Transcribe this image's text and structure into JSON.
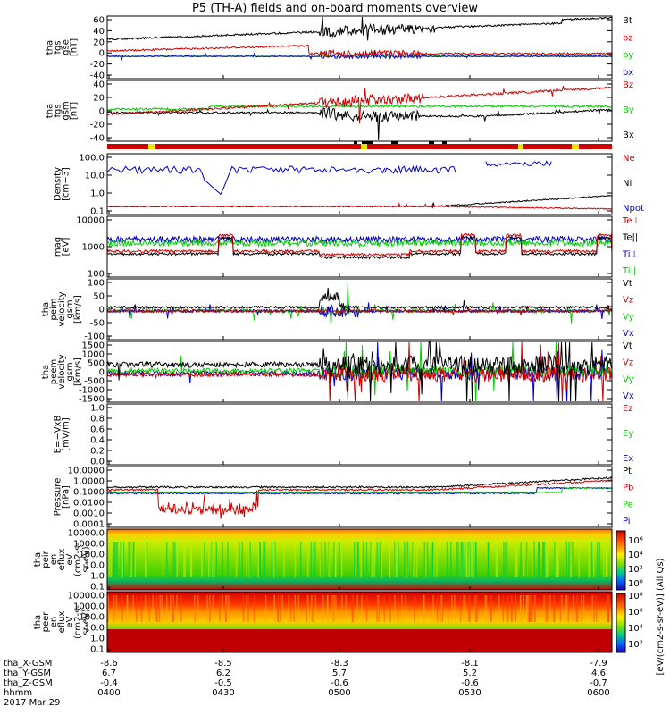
{
  "title": "P5 (TH-A) fields and on-board moments overview",
  "colors": {
    "black": "#000000",
    "red": "#d00000",
    "green": "#00cc00",
    "blue": "#0000d0",
    "yellow": "#e8e800"
  },
  "chart_data": [
    {
      "type": "line",
      "ylabel": [
        "tha",
        "fgs",
        "gse",
        "[nT]"
      ],
      "yticks": [
        "60",
        "40",
        "20",
        "0",
        "-20",
        "-40"
      ],
      "ylim": [
        -45,
        65
      ],
      "series": [
        {
          "name": "Bt",
          "color": "black"
        },
        {
          "name": "bz",
          "color": "red"
        },
        {
          "name": "by",
          "color": "green"
        },
        {
          "name": "bx",
          "color": "blue"
        }
      ]
    },
    {
      "type": "line",
      "ylabel": [
        "tha",
        "fgs",
        "gsm",
        "[nT]"
      ],
      "yticks": [
        "40",
        "20",
        "0",
        "-20",
        "-40"
      ],
      "ylim": [
        -50,
        50
      ],
      "series": [
        {
          "name": "Bz",
          "color": "red"
        },
        {
          "name": "By",
          "color": "green"
        },
        {
          "name": "Bx",
          "color": "black"
        }
      ]
    },
    {
      "type": "line",
      "log": true,
      "ylabel": [
        "Density",
        "[cm−3]"
      ],
      "yticks": [
        "100.0",
        "10.0",
        "1.0",
        "0.1"
      ],
      "series": [
        {
          "name": "Ne",
          "color": "red"
        },
        {
          "name": "Ni",
          "color": "black"
        },
        {
          "name": "Npot",
          "color": "blue"
        }
      ]
    },
    {
      "type": "line",
      "log": true,
      "ylabel": [
        "mag",
        "[eV]"
      ],
      "yticks": [
        "10000",
        "1000",
        "100"
      ],
      "series": [
        {
          "name": "Te⊥",
          "color": "red"
        },
        {
          "name": "Te||",
          "color": "black"
        },
        {
          "name": "Ti⊥",
          "color": "blue"
        },
        {
          "name": "Ti||",
          "color": "green"
        }
      ]
    },
    {
      "type": "line",
      "ylabel": [
        "tha",
        "peim",
        "velocity",
        "gsm",
        "[km/s]"
      ],
      "yticks": [
        "100",
        "50",
        "0",
        "-50",
        "-100"
      ],
      "series": [
        {
          "name": "Vt",
          "color": "black"
        },
        {
          "name": "Vz",
          "color": "red"
        },
        {
          "name": "Vy",
          "color": "green"
        },
        {
          "name": "Vx",
          "color": "blue"
        }
      ]
    },
    {
      "type": "line",
      "ylabel": [
        "tha",
        "peem",
        "velocity",
        "gsm",
        "[km/s]"
      ],
      "yticks": [
        "1500",
        "1000",
        "500",
        "0",
        "-500",
        "-1000",
        "-1500"
      ],
      "series": [
        {
          "name": "Vt",
          "color": "black"
        },
        {
          "name": "Vz",
          "color": "red"
        },
        {
          "name": "Vy",
          "color": "green"
        },
        {
          "name": "Vx",
          "color": "blue"
        }
      ]
    },
    {
      "type": "line",
      "ylabel": [
        "E=−VxB",
        "[mV/m]"
      ],
      "yticks": [
        "1.0",
        "0.8",
        "0.6",
        "0.4",
        "0.2",
        "0.0"
      ],
      "series": [
        {
          "name": "Ez",
          "color": "red"
        },
        {
          "name": "Ey",
          "color": "green"
        },
        {
          "name": "Ex",
          "color": "blue"
        }
      ]
    },
    {
      "type": "line",
      "log": true,
      "ylabel": [
        "Pressure",
        "[nPa]"
      ],
      "yticks": [
        "10.0000",
        "1.0000",
        "0.1000",
        "0.0100",
        "0.0010",
        "0.0001"
      ],
      "series": [
        {
          "name": "Pt",
          "color": "black"
        },
        {
          "name": "Pb",
          "color": "red"
        },
        {
          "name": "Pe",
          "color": "green"
        },
        {
          "name": "Pi",
          "color": "blue"
        }
      ]
    },
    {
      "type": "heatmap",
      "ylabel": [
        "tha",
        "peir",
        "en",
        "eflux",
        "eV",
        "(cm2-s-",
        "sr-eV)"
      ],
      "yticks": [
        "10000.0",
        "1000.0",
        "100.0",
        "10.0",
        "1.0",
        "0.1"
      ]
    },
    {
      "type": "heatmap",
      "ylabel": [
        "tha",
        "peer",
        "en",
        "eflux",
        "eV",
        "(cm2-s-",
        "sr-eV)"
      ],
      "yticks": [
        "10000.0",
        "1000.0",
        "100.0",
        "10.0",
        "1.0",
        "0.1"
      ]
    }
  ],
  "colorbar_label": "[eV/(cm2-s-sr-eV)] (All Qs)",
  "colorbar_ticks": [
    "10⁶",
    "10⁴",
    "10²",
    "10⁰"
  ],
  "colorbar2_ticks": [
    "10⁸",
    "10⁶",
    "10⁴",
    "10²"
  ],
  "xaxis": {
    "ticks": [
      {
        "x": "-8.6",
        "y": "6.7",
        "z": "-0.4",
        "t": "0400"
      },
      {
        "x": "-8.5",
        "y": "6.2",
        "z": "-0.5",
        "t": "0430"
      },
      {
        "x": "-8.3",
        "y": "5.7",
        "z": "-0.6",
        "t": "0500"
      },
      {
        "x": "-8.1",
        "y": "5.2",
        "z": "-0.6",
        "t": "0530"
      },
      {
        "x": "-7.9",
        "y": "4.6",
        "z": "-0.7",
        "t": "0600"
      }
    ],
    "row_labels": [
      "tha_X-GSM",
      "tha_Y-GSM",
      "tha_Z-GSM",
      "hhmm",
      "2017 Mar 29"
    ]
  }
}
